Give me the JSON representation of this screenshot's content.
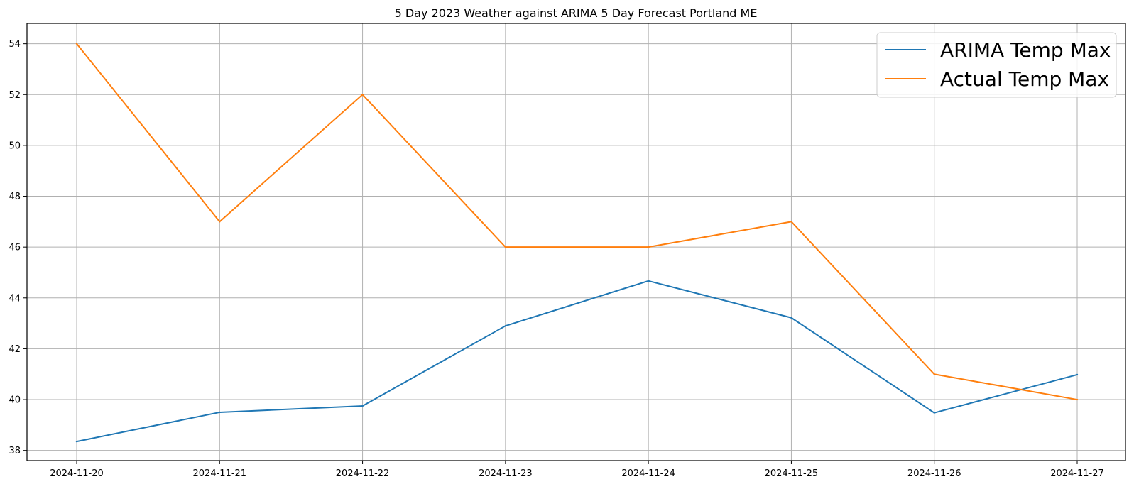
{
  "chart_data": {
    "type": "line",
    "title": "5 Day 2023 Weather against ARIMA 5 Day Forecast Portland ME",
    "xlabel": "",
    "ylabel": "",
    "x": [
      "2024-11-20",
      "2024-11-21",
      "2024-11-22",
      "2024-11-23",
      "2024-11-24",
      "2024-11-25",
      "2024-11-26",
      "2024-11-27"
    ],
    "y_ticks": [
      38,
      40,
      42,
      44,
      46,
      48,
      50,
      52,
      54
    ],
    "ylim": [
      37.6,
      54.8
    ],
    "grid": true,
    "legend_position": "top-right",
    "series": [
      {
        "name": "ARIMA Temp Max",
        "color": "#1f77b4",
        "values": [
          38.35,
          39.5,
          39.75,
          42.9,
          44.67,
          43.22,
          39.48,
          40.98
        ]
      },
      {
        "name": "Actual Temp Max",
        "color": "#ff7f0e",
        "values": [
          54,
          47,
          52,
          46,
          46,
          47,
          41,
          40
        ]
      }
    ]
  }
}
